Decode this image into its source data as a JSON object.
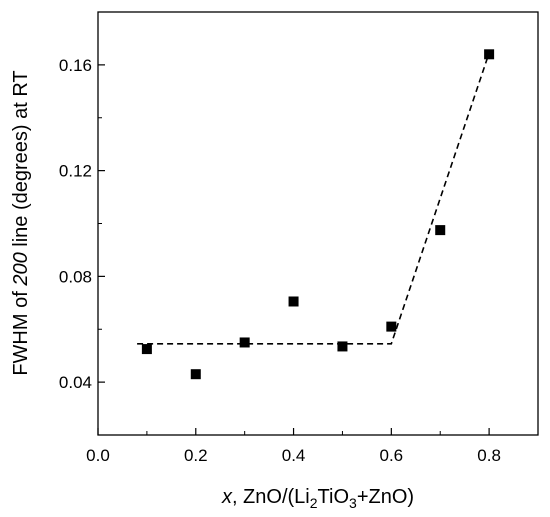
{
  "chart_data": {
    "type": "scatter",
    "title": "",
    "xlabel": {
      "italic": "x",
      "rest": ", ZnO/(Li",
      "sub": "2",
      "tail": "TiO",
      "sub2": "3",
      "end": "+ZnO)"
    },
    "ylabel": {
      "pre": "FWHM of ",
      "italic": "200",
      "post": " line (degrees) at RT"
    },
    "xlim": [
      0.0,
      0.9
    ],
    "ylim": [
      0.02,
      0.18
    ],
    "x_ticks": [
      0.0,
      0.2,
      0.4,
      0.6,
      0.8
    ],
    "x_tick_labels": [
      "0.0",
      "0.2",
      "0.4",
      "0.6",
      "0.8"
    ],
    "y_ticks": [
      0.04,
      0.08,
      0.12,
      0.16
    ],
    "y_tick_labels": [
      "0.04",
      "0.08",
      "0.12",
      "0.16"
    ],
    "grid": false,
    "legend": "none",
    "series": [
      {
        "marker": "square",
        "color": "#000000",
        "x": [
          0.1,
          0.2,
          0.3,
          0.4,
          0.5,
          0.6,
          0.7,
          0.8
        ],
        "y": [
          0.0525,
          0.043,
          0.055,
          0.0705,
          0.0535,
          0.061,
          0.0975,
          0.164
        ]
      }
    ],
    "fit_lines": [
      {
        "style": "dashed",
        "color": "#000000",
        "x": [
          0.08,
          0.6,
          0.8
        ],
        "y": [
          0.0545,
          0.0545,
          0.1645
        ]
      }
    ]
  }
}
